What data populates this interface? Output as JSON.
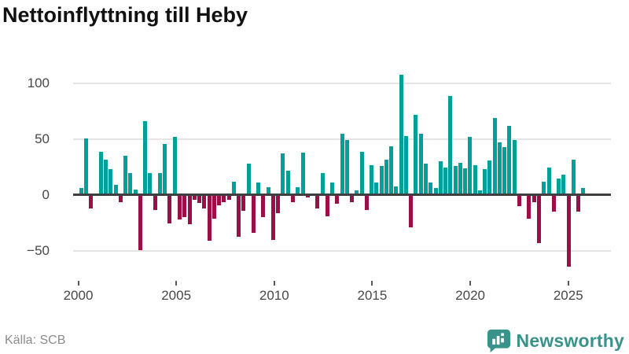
{
  "header": {
    "title": "Nettoinflyttning till Heby"
  },
  "footer": {
    "source": "Källa: SCB",
    "brand": "Newsworthy"
  },
  "colors": {
    "positive": "#00a09a",
    "negative": "#9b0e47",
    "axis": "#3f3f3f",
    "grid": "#e4e4e4",
    "brand": "#39938b"
  },
  "chart_data": {
    "type": "bar",
    "title": "Nettoinflyttning till Heby",
    "subtitle": "",
    "xlabel": "",
    "ylabel": "",
    "x_unit": "quarter",
    "grid": "horizontal",
    "legend": "none",
    "ylim": [
      -70,
      115
    ],
    "y_ticks": [
      100,
      50,
      0,
      -50
    ],
    "y_tick_labels": [
      "100",
      "50",
      "0",
      "−50"
    ],
    "x_ticks": [
      2000,
      2005,
      2010,
      2015,
      2020,
      2025
    ],
    "source": "SCB",
    "categories": [
      "2000 K1",
      "2000 K2",
      "2000 K3",
      "2000 K4",
      "2001 K1",
      "2001 K2",
      "2001 K3",
      "2001 K4",
      "2002 K1",
      "2002 K2",
      "2002 K3",
      "2002 K4",
      "2003 K1",
      "2003 K2",
      "2003 K3",
      "2003 K4",
      "2004 K1",
      "2004 K2",
      "2004 K3",
      "2004 K4",
      "2005 K1",
      "2005 K2",
      "2005 K3",
      "2005 K4",
      "2006 K1",
      "2006 K2",
      "2006 K3",
      "2006 K4",
      "2007 K1",
      "2007 K2",
      "2007 K3",
      "2007 K4",
      "2008 K1",
      "2008 K2",
      "2008 K3",
      "2008 K4",
      "2009 K1",
      "2009 K2",
      "2009 K3",
      "2009 K4",
      "2010 K1",
      "2010 K2",
      "2010 K3",
      "2010 K4",
      "2011 K1",
      "2011 K2",
      "2011 K3",
      "2011 K4",
      "2012 K1",
      "2012 K2",
      "2012 K3",
      "2012 K4",
      "2013 K1",
      "2013 K2",
      "2013 K3",
      "2013 K4",
      "2014 K1",
      "2014 K2",
      "2014 K3",
      "2014 K4",
      "2015 K1",
      "2015 K2",
      "2015 K3",
      "2015 K4",
      "2016 K1",
      "2016 K2",
      "2016 K3",
      "2016 K4",
      "2017 K1",
      "2017 K2",
      "2017 K3",
      "2017 K4",
      "2018 K1",
      "2018 K2",
      "2018 K3",
      "2018 K4",
      "2019 K1",
      "2019 K2",
      "2019 K3",
      "2019 K4",
      "2020 K1",
      "2020 K2",
      "2020 K3",
      "2020 K4",
      "2021 K1",
      "2021 K2",
      "2021 K3",
      "2021 K4",
      "2022 K1",
      "2022 K2",
      "2022 K3",
      "2022 K4",
      "2023 K1",
      "2023 K2",
      "2023 K3",
      "2023 K4",
      "2024 K1",
      "2024 K2",
      "2024 K3",
      "2024 K4",
      "2025 K1",
      "2025 K2",
      "2025 K3",
      "2025 K4"
    ],
    "values": [
      0,
      6,
      51,
      -12,
      0,
      39,
      32,
      23,
      9,
      -6,
      35,
      20,
      5,
      -49,
      66,
      20,
      -13,
      20,
      46,
      -25,
      52,
      -22,
      -20,
      -26,
      -4,
      -7,
      -12,
      -41,
      -21,
      -9,
      -6,
      -4,
      12,
      -37,
      -14,
      28,
      -34,
      11,
      -20,
      7,
      -40,
      -16,
      37,
      22,
      -6,
      7,
      38,
      -2,
      0,
      -12,
      20,
      -19,
      11,
      -8,
      55,
      49,
      -6,
      4,
      39,
      -13,
      27,
      11,
      26,
      32,
      44,
      8,
      108,
      53,
      -29,
      72,
      55,
      28,
      11,
      6,
      30,
      25,
      89,
      26,
      29,
      24,
      52,
      27,
      4,
      23,
      31,
      69,
      47,
      43,
      62,
      49,
      -10,
      0,
      -21,
      -6,
      -43,
      12,
      25,
      -15,
      15,
      18,
      -64,
      32,
      -15,
      6
    ]
  }
}
